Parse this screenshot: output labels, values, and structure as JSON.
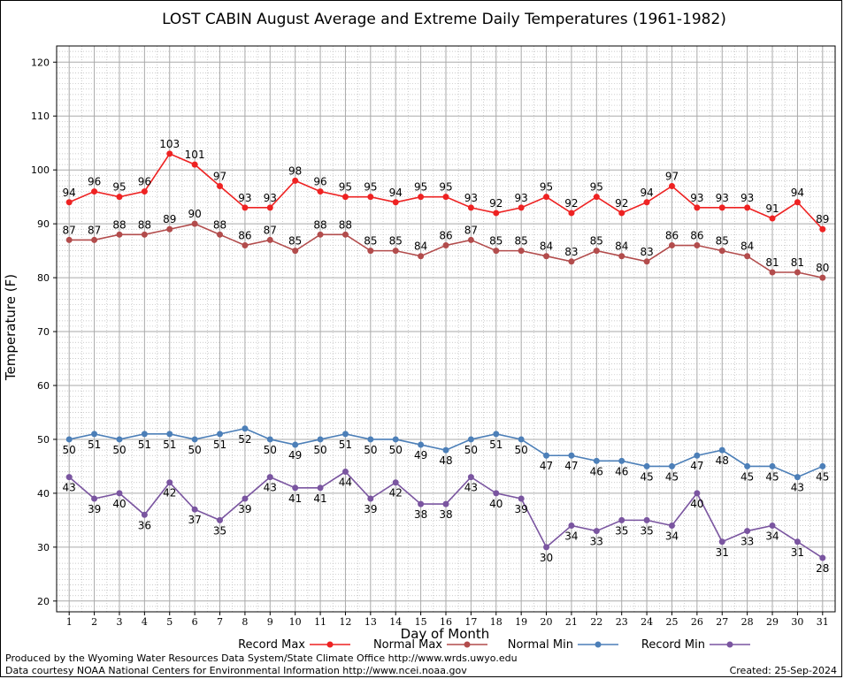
{
  "chart_data": {
    "type": "line",
    "title": "LOST CABIN August Average and Extreme Daily Temperatures (1961-1982)",
    "xlabel": "Day of Month",
    "ylabel": "Temperature (F)",
    "ylim": [
      18,
      123
    ],
    "yticks": [
      20,
      30,
      40,
      50,
      60,
      70,
      80,
      90,
      100,
      110,
      120
    ],
    "grid": true,
    "legend_placement": "bottom",
    "x": [
      1,
      2,
      3,
      4,
      5,
      6,
      7,
      8,
      9,
      10,
      11,
      12,
      13,
      14,
      15,
      16,
      17,
      18,
      19,
      20,
      21,
      22,
      23,
      24,
      25,
      26,
      27,
      28,
      29,
      30,
      31
    ],
    "series": [
      {
        "name": "Record Max",
        "color": "#ee2222",
        "label_pos": "above",
        "values": [
          94,
          96,
          95,
          96,
          103,
          101,
          97,
          93,
          93,
          98,
          96,
          95,
          95,
          94,
          95,
          95,
          93,
          92,
          93,
          95,
          92,
          95,
          92,
          94,
          97,
          93,
          93,
          93,
          91,
          94,
          89
        ]
      },
      {
        "name": "Normal Max",
        "color": "#b24c4c",
        "label_pos": "above",
        "values": [
          87,
          87,
          88,
          88,
          89,
          90,
          88,
          86,
          87,
          85,
          88,
          88,
          85,
          85,
          84,
          86,
          87,
          85,
          85,
          84,
          83,
          85,
          84,
          83,
          86,
          86,
          85,
          84,
          81,
          81,
          80
        ]
      },
      {
        "name": "Normal Min",
        "color": "#4c7fb8",
        "label_pos": "below",
        "values": [
          50,
          51,
          50,
          51,
          51,
          50,
          51,
          52,
          50,
          49,
          50,
          51,
          50,
          50,
          49,
          48,
          50,
          51,
          50,
          47,
          47,
          46,
          46,
          45,
          45,
          47,
          48,
          45,
          45,
          43,
          45
        ]
      },
      {
        "name": "Record Min",
        "color": "#7a55a0",
        "label_pos": "below",
        "values": [
          43,
          39,
          40,
          36,
          42,
          37,
          35,
          39,
          43,
          41,
          41,
          44,
          39,
          42,
          38,
          38,
          43,
          40,
          39,
          30,
          34,
          33,
          35,
          35,
          34,
          40,
          31,
          33,
          34,
          31,
          28
        ]
      }
    ]
  },
  "footer": {
    "produced_by": "Produced by the Wyoming Water Resources Data System/State Climate Office http://www.wrds.uwyo.edu",
    "data_courtesy": "Data courtesy NOAA National Centers for Environmental Information http://www.ncei.noaa.gov",
    "created": "Created:  25-Sep-2024"
  }
}
